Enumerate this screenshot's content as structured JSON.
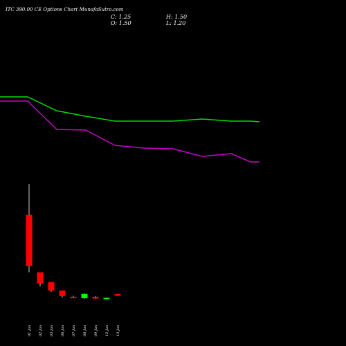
{
  "header": {
    "title": "ITC 390.00  CE Options  Chart MunafaSutra.com",
    "close_label": "C: 1.25",
    "high_label": "H: 1.50",
    "open_label": "O: 1.50",
    "low_label": "L: 1.20"
  },
  "colors": {
    "background": "#000000",
    "up": "#00ff00",
    "down": "#ff0000",
    "line_green": "#00dd00",
    "line_magenta": "#cc00cc"
  },
  "chart_data": {
    "type": "candlestick",
    "categories": [
      "01 Jan",
      "02 Jan",
      "03 Jan",
      "06 Jan",
      "07 Jan",
      "08 Jan",
      "09 Jan",
      "12 Jan",
      "13 Jan"
    ],
    "ohlc": [
      {
        "open": 12.8,
        "high": 17.2,
        "low": 4.6,
        "close": 5.5
      },
      {
        "open": 4.6,
        "high": 4.6,
        "low": 2.6,
        "close": 3.0
      },
      {
        "open": 3.2,
        "high": 3.2,
        "low": 1.8,
        "close": 2.0
      },
      {
        "open": 2.0,
        "high": 2.0,
        "low": 1.0,
        "close": 1.2
      },
      {
        "open": 1.1,
        "high": 1.25,
        "low": 0.95,
        "close": 1.0
      },
      {
        "open": 0.9,
        "high": 1.6,
        "low": 0.8,
        "close": 1.5
      },
      {
        "open": 1.1,
        "high": 1.2,
        "low": 0.8,
        "close": 0.85
      },
      {
        "open": 0.8,
        "high": 1.0,
        "low": 0.7,
        "close": 0.95
      },
      {
        "open": 1.5,
        "high": 1.5,
        "low": 1.2,
        "close": 1.25
      }
    ],
    "overlay_lines": [
      {
        "color": "#00dd00",
        "values": [
          140,
          140,
          140,
          160,
          168,
          175,
          175,
          175,
          172,
          175,
          175,
          176
        ]
      },
      {
        "color": "#cc00cc",
        "values": [
          146,
          146,
          146,
          187,
          188,
          210,
          214,
          215,
          226,
          222,
          234,
          234
        ]
      }
    ],
    "ylim": [
      0,
      18
    ]
  }
}
